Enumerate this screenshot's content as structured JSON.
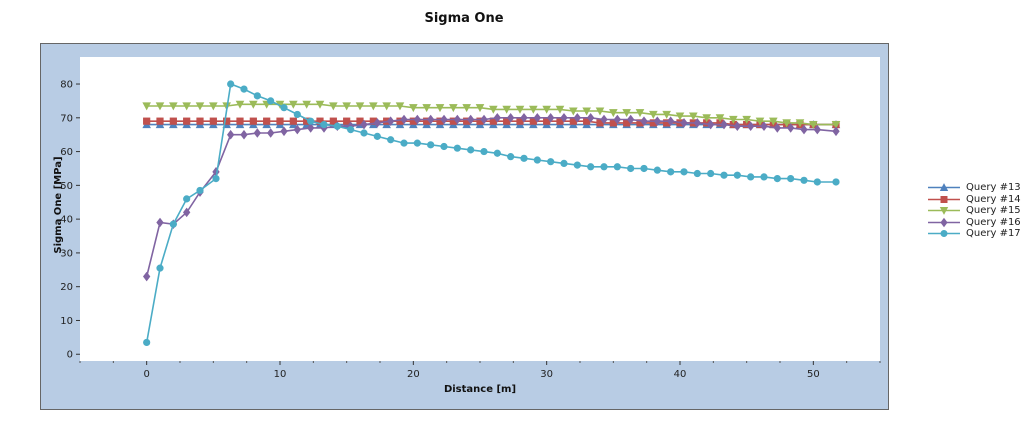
{
  "chart_data": {
    "type": "line",
    "title": "Sigma One",
    "xlabel": "Distance [m]",
    "ylabel": "Sigma One [MPa]",
    "xlim": [
      -5,
      55
    ],
    "ylim": [
      -2,
      88
    ],
    "xticks": [
      0,
      10,
      20,
      30,
      40,
      50
    ],
    "yticks": [
      0,
      10,
      20,
      30,
      40,
      50,
      60,
      70,
      80
    ],
    "legend_position": "right",
    "series": [
      {
        "name": "Query #13",
        "color": "#4f81bd",
        "marker": "triangle-up",
        "x": [
          0,
          1,
          2,
          3,
          4,
          5,
          6,
          7,
          8,
          9,
          10,
          11,
          12,
          13,
          14,
          15,
          16,
          17,
          18,
          19,
          20,
          21,
          22,
          23,
          24,
          25,
          26,
          27,
          28,
          29,
          30,
          31,
          32,
          33,
          34,
          35,
          36,
          37,
          38,
          39,
          40,
          41,
          42,
          43,
          44,
          45,
          46,
          47,
          48,
          49,
          50,
          51.7
        ],
        "y": [
          68,
          68,
          68,
          68,
          68,
          68,
          68,
          68,
          68,
          68,
          68,
          68,
          68,
          68,
          68,
          68,
          68,
          68,
          68,
          68,
          68,
          68,
          68,
          68,
          68,
          68,
          68,
          68,
          68,
          68,
          68,
          68,
          68,
          68,
          68,
          68,
          68,
          68,
          68,
          68,
          68,
          68,
          68,
          68,
          68,
          68,
          68,
          68,
          68,
          68,
          68,
          68
        ]
      },
      {
        "name": "Query #14",
        "color": "#c0504d",
        "marker": "square",
        "x": [
          0,
          1,
          2,
          3,
          4,
          5,
          6,
          7,
          8,
          9,
          10,
          11,
          12,
          13,
          14,
          15,
          16,
          17,
          18,
          19,
          20,
          21,
          22,
          23,
          24,
          25,
          26,
          27,
          28,
          29,
          30,
          31,
          32,
          33,
          34,
          35,
          36,
          37,
          38,
          39,
          40,
          41,
          42,
          43,
          44,
          45,
          46,
          47,
          48,
          49,
          50,
          51.7
        ],
        "y": [
          69,
          69,
          69,
          69,
          69,
          69,
          69,
          69,
          69,
          69,
          69,
          69,
          69,
          69,
          69,
          69,
          69,
          69,
          69,
          69,
          69,
          69,
          69,
          69,
          69,
          69,
          69,
          69,
          69,
          69,
          69,
          69,
          69,
          69,
          68.5,
          68.5,
          68.5,
          68.5,
          68.5,
          68.5,
          68.5,
          68.5,
          68.5,
          68.5,
          68,
          68,
          68,
          68,
          68,
          68,
          68,
          68
        ]
      },
      {
        "name": "Query #15",
        "color": "#9bbb59",
        "marker": "triangle-down",
        "x": [
          0,
          1,
          2,
          3,
          4,
          5,
          6,
          7,
          8,
          9,
          10,
          11,
          12,
          13,
          14,
          15,
          16,
          17,
          18,
          19,
          20,
          21,
          22,
          23,
          24,
          25,
          26,
          27,
          28,
          29,
          30,
          31,
          32,
          33,
          34,
          35,
          36,
          37,
          38,
          39,
          40,
          41,
          42,
          43,
          44,
          45,
          46,
          47,
          48,
          49,
          50,
          51.7
        ],
        "y": [
          73.5,
          73.5,
          73.5,
          73.5,
          73.5,
          73.5,
          73.5,
          74,
          74,
          74,
          74,
          74,
          74,
          74,
          73.5,
          73.5,
          73.5,
          73.5,
          73.5,
          73.5,
          73,
          73,
          73,
          73,
          73,
          73,
          72.5,
          72.5,
          72.5,
          72.5,
          72.5,
          72.5,
          72,
          72,
          72,
          71.5,
          71.5,
          71.5,
          71,
          71,
          70.5,
          70.5,
          70,
          70,
          69.5,
          69.5,
          69,
          69,
          68.5,
          68.5,
          68,
          68
        ]
      },
      {
        "name": "Query #16",
        "color": "#8064a2",
        "marker": "diamond",
        "x": [
          0,
          1,
          2,
          3,
          4,
          5.2,
          6.3,
          7.3,
          8.3,
          9.3,
          10.3,
          11.3,
          12.3,
          13.3,
          14.3,
          15.3,
          16.3,
          17.3,
          18.3,
          19.3,
          20.3,
          21.3,
          22.3,
          23.3,
          24.3,
          25.3,
          26.3,
          27.3,
          28.3,
          29.3,
          30.3,
          31.3,
          32.3,
          33.3,
          34.3,
          35.3,
          36.3,
          37.3,
          38.3,
          39.3,
          40.3,
          41.3,
          42.3,
          43.3,
          44.3,
          45.3,
          46.3,
          47.3,
          48.3,
          49.3,
          50.3,
          51.7
        ],
        "y": [
          23,
          39,
          38.5,
          42,
          48,
          54,
          65,
          65,
          65.5,
          65.5,
          66,
          66.5,
          67,
          67,
          67.5,
          67.5,
          68,
          68.5,
          69,
          69.5,
          69.5,
          69.5,
          69.5,
          69.5,
          69.5,
          69.5,
          70,
          70,
          70,
          70,
          70,
          70,
          70,
          70,
          69.5,
          69.5,
          69.5,
          69,
          69,
          69,
          68.5,
          68.5,
          68,
          68,
          67.5,
          67.5,
          67.5,
          67,
          67,
          66.5,
          66.5,
          66
        ]
      },
      {
        "name": "Query #17",
        "color": "#4bacc6",
        "marker": "circle",
        "x": [
          0,
          1,
          2,
          3,
          4,
          5.2,
          6.3,
          7.3,
          8.3,
          9.3,
          10.3,
          11.3,
          12.3,
          13.3,
          14.3,
          15.3,
          16.3,
          17.3,
          18.3,
          19.3,
          20.3,
          21.3,
          22.3,
          23.3,
          24.3,
          25.3,
          26.3,
          27.3,
          28.3,
          29.3,
          30.3,
          31.3,
          32.3,
          33.3,
          34.3,
          35.3,
          36.3,
          37.3,
          38.3,
          39.3,
          40.3,
          41.3,
          42.3,
          43.3,
          44.3,
          45.3,
          46.3,
          47.3,
          48.3,
          49.3,
          50.3,
          51.7
        ],
        "y": [
          3.5,
          25.5,
          38.5,
          46,
          48.5,
          52,
          80,
          78.5,
          76.5,
          75,
          73,
          71,
          69,
          68,
          67.5,
          66.5,
          65.5,
          64.5,
          63.5,
          62.5,
          62.5,
          62,
          61.5,
          61,
          60.5,
          60,
          59.5,
          58.5,
          58,
          57.5,
          57,
          56.5,
          56,
          55.5,
          55.5,
          55.5,
          55,
          55,
          54.5,
          54,
          54,
          53.5,
          53.5,
          53,
          53,
          52.5,
          52.5,
          52,
          52,
          51.5,
          51,
          51
        ]
      }
    ]
  }
}
